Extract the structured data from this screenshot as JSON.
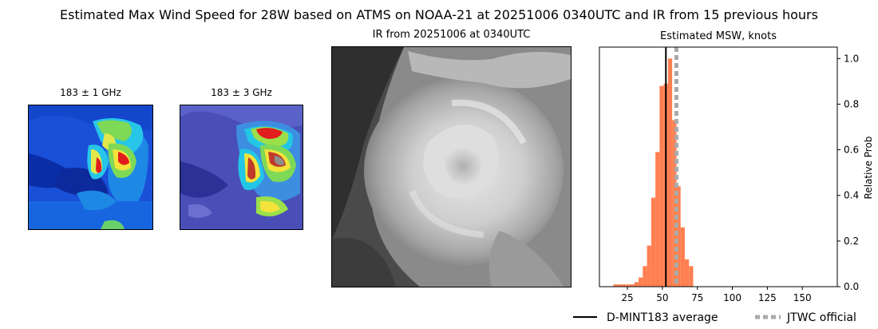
{
  "figure": {
    "title": "Estimated Max Wind Speed for 28W based on ATMS on NOAA-21 at 20251006 0340UTC and IR from 15 previous hours"
  },
  "panels": {
    "mw1_title": "183 ± 1 GHz",
    "mw3_title": "183 ± 3 GHz",
    "ir_title": "IR from 20251006 at 0340UTC",
    "hist_title": "Estimated MSW, knots"
  },
  "colors": {
    "hist_fill": "#ff7f50",
    "average_line": "#000000",
    "official_line": "#a9a9a9"
  },
  "chart_data": {
    "type": "bar",
    "title": "Estimated MSW, knots",
    "xlabel": "",
    "ylabel": "Relative Prob",
    "xlim": [
      5,
      175
    ],
    "ylim": [
      0,
      1.05
    ],
    "xticks": [
      25,
      50,
      75,
      100,
      125,
      150
    ],
    "yticks": [
      0.0,
      0.2,
      0.4,
      0.6,
      0.8,
      1.0
    ],
    "ytick_labels": [
      "0.0",
      "0.2",
      "0.4",
      "0.6",
      "0.8",
      "1.0"
    ],
    "yaxis_side": "right",
    "bin_width": 3,
    "bins": [
      {
        "x": 15,
        "value": 0.01
      },
      {
        "x": 18,
        "value": 0.01
      },
      {
        "x": 21,
        "value": 0.01
      },
      {
        "x": 24,
        "value": 0.01
      },
      {
        "x": 27,
        "value": 0.01
      },
      {
        "x": 30,
        "value": 0.02
      },
      {
        "x": 33,
        "value": 0.04
      },
      {
        "x": 36,
        "value": 0.09
      },
      {
        "x": 39,
        "value": 0.18
      },
      {
        "x": 42,
        "value": 0.39
      },
      {
        "x": 45,
        "value": 0.59
      },
      {
        "x": 48,
        "value": 0.88
      },
      {
        "x": 51,
        "value": 0.89
      },
      {
        "x": 54,
        "value": 1.0
      },
      {
        "x": 57,
        "value": 0.73
      },
      {
        "x": 60,
        "value": 0.44
      },
      {
        "x": 63,
        "value": 0.26
      },
      {
        "x": 66,
        "value": 0.12
      },
      {
        "x": 69,
        "value": 0.09
      }
    ],
    "average": 52.5,
    "official": 60,
    "legend": {
      "average_label": "D-MINT183 average",
      "official_label": "JTWC official",
      "position": "bottom-right"
    }
  }
}
